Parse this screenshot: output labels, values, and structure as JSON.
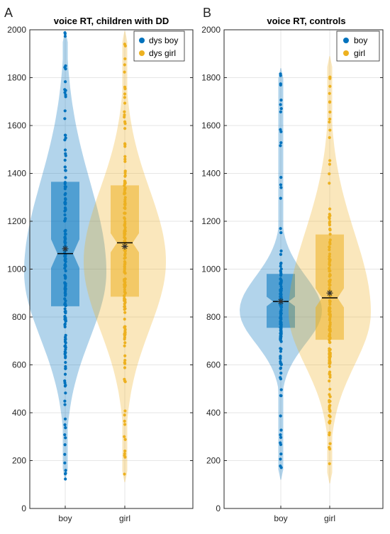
{
  "colors": {
    "boy": "#0072bd",
    "girl": "#edb120",
    "median": "#000000",
    "mean": "#333333",
    "grid": "#e6e6e6",
    "axis": "#262626"
  },
  "chart_data": [
    {
      "panel": "A",
      "type": "violin",
      "title": "voice RT, children with DD",
      "categories": [
        "boy",
        "girl"
      ],
      "ylim": [
        0,
        2000
      ],
      "yticks": [
        0,
        200,
        400,
        600,
        800,
        1000,
        1200,
        1400,
        1600,
        1800,
        2000
      ],
      "grid": true,
      "legend": {
        "placement": "top-right",
        "entries": [
          "dys boy",
          "dys girl"
        ]
      },
      "series": [
        {
          "name": "dys boy",
          "median": 1065,
          "mean": 1085,
          "q1": 845,
          "q3": 1365,
          "notch_low": 1005,
          "notch_high": 1125,
          "min": 120,
          "max": 1995
        },
        {
          "name": "dys girl",
          "median": 1110,
          "mean": 1095,
          "q1": 885,
          "q3": 1350,
          "notch_low": 1070,
          "notch_high": 1150,
          "min": 110,
          "max": 1995
        }
      ]
    },
    {
      "panel": "B",
      "type": "violin",
      "title": "voice RT, controls",
      "categories": [
        "boy",
        "girl"
      ],
      "ylim": [
        0,
        2000
      ],
      "yticks": [
        0,
        200,
        400,
        600,
        800,
        1000,
        1200,
        1400,
        1600,
        1800,
        2000
      ],
      "grid": true,
      "legend": {
        "placement": "top-right",
        "entries": [
          "boy",
          "girl"
        ]
      },
      "series": [
        {
          "name": "boy",
          "median": 865,
          "mean": 865,
          "q1": 755,
          "q3": 980,
          "notch_low": 845,
          "notch_high": 885,
          "min": 120,
          "max": 1840
        },
        {
          "name": "girl",
          "median": 880,
          "mean": 900,
          "q1": 705,
          "q3": 1145,
          "notch_low": 840,
          "notch_high": 920,
          "min": 105,
          "max": 1890
        }
      ]
    }
  ]
}
